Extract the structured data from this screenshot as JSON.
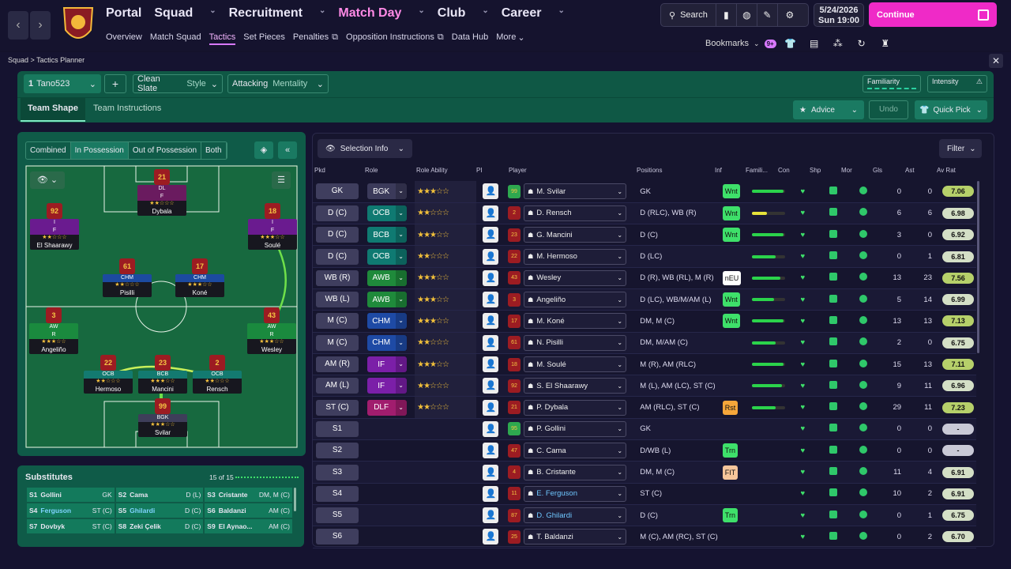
{
  "nav": {
    "main": [
      {
        "label": "Portal",
        "active": false
      },
      {
        "label": "Squad",
        "active": false
      },
      {
        "label": "Recruitment",
        "active": false
      },
      {
        "label": "Match Day",
        "active": true
      },
      {
        "label": "Club",
        "active": false
      },
      {
        "label": "Career",
        "active": false
      }
    ],
    "sub": [
      "Overview",
      "Match Squad",
      "Tactics",
      "Set Pieces",
      "Penalties",
      "Opposition Instructions",
      "Data Hub",
      "More"
    ],
    "sub_active": "Tactics",
    "search_label": "Search",
    "bookmarks_label": "Bookmarks",
    "bookmarks_badge": "9+",
    "date": "5/24/2026",
    "day_time": "Sun  19:00",
    "continue_label": "Continue"
  },
  "breadcrumb": {
    "part1": "Squad",
    "sep": ">",
    "part2": "Tactics Planner"
  },
  "toolbar": {
    "tactic_num": "1",
    "tactic_name": "Tano523",
    "add_label": "+",
    "style_value": "Clean Slate",
    "style_label": "Style",
    "mentality_value": "Attacking",
    "mentality_label": "Mentality",
    "familiarity_label": "Familiarity",
    "intensity_label": "Intensity",
    "tab_shape": "Team Shape",
    "tab_instructions": "Team Instructions",
    "advice_label": "Advice",
    "undo_label": "Undo",
    "quickpick_label": "Quick Pick"
  },
  "pitch_tabs": [
    "Combined",
    "In Possession",
    "Out of Possession",
    "Both"
  ],
  "pitch_tab_active": "In Possession",
  "pitch_players": [
    {
      "num": "21",
      "role": "DL",
      "duty": "F",
      "name": "Dybala",
      "stars": "★★☆☆☆",
      "badge": "#6a1b5f"
    },
    {
      "num": "92",
      "role": "I",
      "duty": "F",
      "name": "El Shaarawy",
      "stars": "★★☆☆☆",
      "badge": "#6a1b8f"
    },
    {
      "num": "18",
      "role": "I",
      "duty": "F",
      "name": "Soulé",
      "stars": "★★★☆☆",
      "badge": "#6a1b8f"
    },
    {
      "num": "61",
      "role": "CHM",
      "duty": "",
      "name": "Pisilli",
      "stars": "★★☆☆☆",
      "badge": "#1c4aa0"
    },
    {
      "num": "17",
      "role": "CHM",
      "duty": "",
      "name": "Koné",
      "stars": "★★★☆☆",
      "badge": "#1c4aa0"
    },
    {
      "num": "3",
      "role": "AW",
      "duty": "R",
      "name": "Angeliño",
      "stars": "★★★☆☆",
      "badge": "#1a8a3e"
    },
    {
      "num": "43",
      "role": "AW",
      "duty": "R",
      "name": "Wesley",
      "stars": "★★★☆☆",
      "badge": "#1a8a3e"
    },
    {
      "num": "22",
      "role": "OCB",
      "duty": "",
      "name": "Hermoso",
      "stars": "★★☆☆☆",
      "badge": "#137a70"
    },
    {
      "num": "23",
      "role": "BCB",
      "duty": "",
      "name": "Mancini",
      "stars": "★★★☆☆",
      "badge": "#137a70"
    },
    {
      "num": "2",
      "role": "OCB",
      "duty": "",
      "name": "Rensch",
      "stars": "★★☆☆☆",
      "badge": "#137a70"
    },
    {
      "num": "99",
      "role": "BGK",
      "duty": "",
      "name": "Svilar",
      "stars": "★★★☆☆",
      "badge": "#3e3e5a"
    }
  ],
  "subs": {
    "title": "Substitutes",
    "count": "15 of 15",
    "rows": [
      [
        [
          "S1",
          "Gollini",
          "GK",
          false
        ],
        [
          "S2",
          "Cama",
          "D (L)",
          false
        ],
        [
          "S3",
          "Cristante",
          "DM, M (C)",
          false
        ]
      ],
      [
        [
          "S4",
          "Ferguson",
          "ST (C)",
          true
        ],
        [
          "S5",
          "Ghilardi",
          "D (C)",
          true
        ],
        [
          "S6",
          "Baldanzi",
          "AM (C)",
          false
        ]
      ],
      [
        [
          "S7",
          "Dovbyk",
          "ST (C)",
          false
        ],
        [
          "S8",
          "Zeki Çelik",
          "D (C)",
          false
        ],
        [
          "S9",
          "El Aynao...",
          "AM (C)",
          false
        ]
      ]
    ]
  },
  "selection_info_label": "Selection Info",
  "filter_label": "Filter",
  "columns": [
    "Pkd",
    "Role",
    "Role Ability",
    "PI",
    "Player",
    "Positions",
    "Inf",
    "Famili...",
    "Con",
    "Shp",
    "Mor",
    "Gls",
    "Ast",
    "Av Rat"
  ],
  "rows": [
    {
      "pkd": "GK",
      "role": "BGK",
      "rc": "#3b3a5a",
      "stars": "★★★☆☆",
      "num": "99",
      "player": "M. Svilar",
      "positions": "GK",
      "inf": "Wnt",
      "infc": "#3ee06a",
      "fam": 0.95,
      "famc": "#2bd34b",
      "gls": "0",
      "ast": "0",
      "rat": "7.06",
      "ratc": "#b6d06a",
      "link": false,
      "noRole": false
    },
    {
      "pkd": "D (C)",
      "role": "OCB",
      "rc": "#0f7a72",
      "stars": "★★☆☆☆",
      "num": "2",
      "player": "D. Rensch",
      "positions": "D (RLC), WB (R)",
      "inf": "Wnt",
      "infc": "#3ee06a",
      "fam": 0.45,
      "famc": "#e6e23a",
      "gls": "6",
      "ast": "6",
      "rat": "6.98",
      "ratc": "#d4dfc6",
      "link": false,
      "noRole": false
    },
    {
      "pkd": "D (C)",
      "role": "BCB",
      "rc": "#0f7a72",
      "stars": "★★★☆☆",
      "num": "23",
      "player": "G. Mancini",
      "positions": "D (C)",
      "inf": "Wnt",
      "infc": "#3ee06a",
      "fam": 0.95,
      "famc": "#2bd34b",
      "gls": "3",
      "ast": "0",
      "rat": "6.92",
      "ratc": "#d4dfc6",
      "link": false,
      "noRole": false
    },
    {
      "pkd": "D (C)",
      "role": "OCB",
      "rc": "#0f7a72",
      "stars": "★★☆☆☆",
      "num": "22",
      "player": "M. Hermoso",
      "positions": "D (LC)",
      "inf": "",
      "infc": "",
      "fam": 0.7,
      "famc": "#2bd34b",
      "gls": "0",
      "ast": "1",
      "rat": "6.81",
      "ratc": "#d4dfc6",
      "link": false,
      "noRole": false
    },
    {
      "pkd": "WB (R)",
      "role": "AWB",
      "rc": "#1f8a3b",
      "stars": "★★★☆☆",
      "num": "43",
      "player": "Wesley",
      "positions": "D (R), WB (RL), M (R)",
      "inf": "nEU",
      "infc": "#ffffff",
      "fam": 0.85,
      "famc": "#2bd34b",
      "gls": "13",
      "ast": "23",
      "rat": "7.56",
      "ratc": "#b6d06a",
      "link": false,
      "noRole": false
    },
    {
      "pkd": "WB (L)",
      "role": "AWB",
      "rc": "#1f8a3b",
      "stars": "★★★☆☆",
      "num": "3",
      "player": "Angeliño",
      "positions": "D (LC), WB/M/AM (L)",
      "inf": "Wnt",
      "infc": "#3ee06a",
      "fam": 0.65,
      "famc": "#2bd34b",
      "gls": "5",
      "ast": "14",
      "rat": "6.99",
      "ratc": "#d4dfc6",
      "link": false,
      "noRole": false
    },
    {
      "pkd": "M (C)",
      "role": "CHM",
      "rc": "#1e4aa5",
      "stars": "★★★☆☆",
      "num": "17",
      "player": "M. Koné",
      "positions": "DM, M (C)",
      "inf": "Wnt",
      "infc": "#3ee06a",
      "fam": 0.95,
      "famc": "#2bd34b",
      "gls": "13",
      "ast": "13",
      "rat": "7.13",
      "ratc": "#b6d06a",
      "link": false,
      "noRole": false
    },
    {
      "pkd": "M (C)",
      "role": "CHM",
      "rc": "#1e4aa5",
      "stars": "★★☆☆☆",
      "num": "61",
      "player": "N. Pisilli",
      "positions": "DM, M/AM (C)",
      "inf": "",
      "infc": "",
      "fam": 0.7,
      "famc": "#2bd34b",
      "gls": "2",
      "ast": "0",
      "rat": "6.75",
      "ratc": "#d4dfc6",
      "link": false,
      "noRole": false
    },
    {
      "pkd": "AM (R)",
      "role": "IF",
      "rc": "#7b1fa8",
      "stars": "★★★☆☆",
      "num": "18",
      "player": "M. Soulé",
      "positions": "M (R), AM (RLC)",
      "inf": "",
      "infc": "",
      "fam": 0.95,
      "famc": "#2bd34b",
      "gls": "15",
      "ast": "13",
      "rat": "7.11",
      "ratc": "#b6d06a",
      "link": false,
      "noRole": false
    },
    {
      "pkd": "AM (L)",
      "role": "IF",
      "rc": "#7b1fa8",
      "stars": "★★☆☆☆",
      "num": "92",
      "player": "S. El Shaarawy",
      "positions": "M (L), AM (LC), ST (C)",
      "inf": "",
      "infc": "",
      "fam": 0.9,
      "famc": "#2bd34b",
      "gls": "9",
      "ast": "11",
      "rat": "6.96",
      "ratc": "#d4dfc6",
      "link": false,
      "noRole": false
    },
    {
      "pkd": "ST (C)",
      "role": "DLF",
      "rc": "#a11d6e",
      "stars": "★★☆☆☆",
      "num": "21",
      "player": "P. Dybala",
      "positions": "AM (RLC), ST (C)",
      "inf": "Rst",
      "infc": "#f5a63a",
      "fam": 0.7,
      "famc": "#2bd34b",
      "gls": "29",
      "ast": "11",
      "rat": "7.23",
      "ratc": "#b6d06a",
      "link": false,
      "noRole": false
    },
    {
      "pkd": "S1",
      "role": "",
      "rc": "",
      "stars": "",
      "num": "95",
      "player": "P. Gollini",
      "positions": "GK",
      "inf": "",
      "infc": "",
      "fam": 0,
      "famc": "",
      "gls": "0",
      "ast": "0",
      "rat": "-",
      "ratc": "#c9c9d6",
      "link": false,
      "noRole": true
    },
    {
      "pkd": "S2",
      "role": "",
      "rc": "",
      "stars": "",
      "num": "47",
      "player": "C. Cama",
      "positions": "D/WB (L)",
      "inf": "Trn",
      "infc": "#3ee06a",
      "fam": 0,
      "famc": "",
      "gls": "0",
      "ast": "0",
      "rat": "-",
      "ratc": "#c9c9d6",
      "link": false,
      "noRole": true
    },
    {
      "pkd": "S3",
      "role": "",
      "rc": "",
      "stars": "",
      "num": "4",
      "player": "B. Cristante",
      "positions": "DM, M (C)",
      "inf": "FIT",
      "infc": "#f5c59a",
      "fam": 0,
      "famc": "",
      "gls": "11",
      "ast": "4",
      "rat": "6.91",
      "ratc": "#d4dfc6",
      "link": false,
      "noRole": true
    },
    {
      "pkd": "S4",
      "role": "",
      "rc": "",
      "stars": "",
      "num": "11",
      "player": "E. Ferguson",
      "positions": "ST (C)",
      "inf": "",
      "infc": "",
      "fam": 0,
      "famc": "",
      "gls": "10",
      "ast": "2",
      "rat": "6.91",
      "ratc": "#d4dfc6",
      "link": true,
      "noRole": true
    },
    {
      "pkd": "S5",
      "role": "",
      "rc": "",
      "stars": "",
      "num": "87",
      "player": "D. Ghilardi",
      "positions": "D (C)",
      "inf": "Trn",
      "infc": "#3ee06a",
      "fam": 0,
      "famc": "",
      "gls": "0",
      "ast": "1",
      "rat": "6.75",
      "ratc": "#d4dfc6",
      "link": true,
      "noRole": true
    },
    {
      "pkd": "S6",
      "role": "",
      "rc": "",
      "stars": "",
      "num": "25",
      "player": "T. Baldanzi",
      "positions": "M (C), AM (RC), ST (C)",
      "inf": "",
      "infc": "",
      "fam": 0,
      "famc": "",
      "gls": "0",
      "ast": "2",
      "rat": "6.70",
      "ratc": "#d4dfc6",
      "link": false,
      "noRole": true
    }
  ]
}
